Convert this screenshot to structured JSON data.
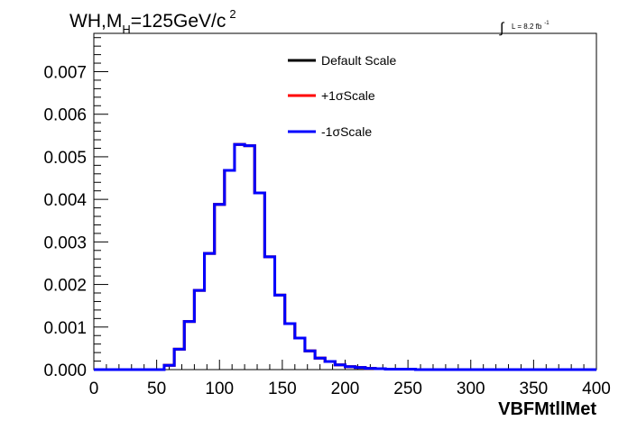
{
  "chart_data": {
    "type": "line",
    "title": {
      "main": "WH,M",
      "subscript": "H",
      "rest": "=125GeV/c",
      "superscript": "2"
    },
    "luminosity": {
      "integral": "∫",
      "text": "L = 8.2 fb",
      "superscript": "-1"
    },
    "xlabel": "VBFMtllMet",
    "ylabel": "",
    "xlim": [
      0,
      400
    ],
    "ylim": [
      0,
      0.0079
    ],
    "x_ticks": [
      "0",
      "50",
      "100",
      "150",
      "200",
      "250",
      "300",
      "350",
      "400"
    ],
    "x_tick_values": [
      0,
      50,
      100,
      150,
      200,
      250,
      300,
      350,
      400
    ],
    "y_ticks": [
      "0.000",
      "0.001",
      "0.002",
      "0.003",
      "0.004",
      "0.005",
      "0.006",
      "0.007"
    ],
    "y_tick_values": [
      0,
      0.001,
      0.002,
      0.003,
      0.004,
      0.005,
      0.006,
      0.007
    ],
    "bin_width": 8,
    "legend": {
      "position": "top-center",
      "entries": [
        {
          "label": "Default Scale",
          "color": "#000000"
        },
        {
          "label": "+1σScale",
          "color": "#ff0000"
        },
        {
          "label": "-1σScale",
          "color": "#0000ff"
        }
      ]
    },
    "series": [
      {
        "name": "Default Scale",
        "color": "#000000",
        "bin_edges": [
          0,
          8,
          16,
          24,
          32,
          40,
          48,
          56,
          64,
          72,
          80,
          88,
          96,
          104,
          112,
          120,
          128,
          136,
          144,
          152,
          160,
          168,
          176,
          184,
          192,
          200,
          208,
          216,
          224,
          232,
          240,
          248,
          256,
          264,
          272,
          280,
          288,
          296,
          304,
          312,
          320,
          328,
          336,
          344,
          352,
          360,
          368,
          376,
          384,
          392,
          400
        ],
        "values": [
          0,
          0,
          0,
          0,
          0,
          0,
          0,
          0.0001,
          0.00048,
          0.00113,
          0.00186,
          0.00273,
          0.00388,
          0.00468,
          0.00529,
          0.00526,
          0.00415,
          0.00265,
          0.00175,
          0.00108,
          0.00074,
          0.00044,
          0.00027,
          0.00019,
          0.00011,
          7e-05,
          5e-05,
          3e-05,
          2e-05,
          1e-05,
          1e-05,
          1e-05,
          0,
          0,
          0,
          0,
          0,
          0,
          0,
          0,
          0,
          0,
          0,
          0,
          0,
          0,
          0,
          0,
          0,
          0
        ]
      },
      {
        "name": "+1σScale",
        "color": "#ff0000",
        "bin_edges": [
          0,
          8,
          16,
          24,
          32,
          40,
          48,
          56,
          64,
          72,
          80,
          88,
          96,
          104,
          112,
          120,
          128,
          136,
          144,
          152,
          160,
          168,
          176,
          184,
          192,
          200,
          208,
          216,
          224,
          232,
          240,
          248,
          256,
          264,
          272,
          280,
          288,
          296,
          304,
          312,
          320,
          328,
          336,
          344,
          352,
          360,
          368,
          376,
          384,
          392,
          400
        ],
        "values": [
          0,
          0,
          0,
          0,
          0,
          0,
          0,
          0.0001,
          0.00048,
          0.00113,
          0.00186,
          0.00273,
          0.00388,
          0.00468,
          0.00529,
          0.00526,
          0.00415,
          0.00265,
          0.00175,
          0.00108,
          0.00074,
          0.00044,
          0.00027,
          0.00019,
          0.00011,
          7e-05,
          5e-05,
          3e-05,
          2e-05,
          1e-05,
          1e-05,
          1e-05,
          0,
          0,
          0,
          0,
          0,
          0,
          0,
          0,
          0,
          0,
          0,
          0,
          0,
          0,
          0,
          0,
          0,
          0
        ]
      },
      {
        "name": "-1σScale",
        "color": "#0000ff",
        "bin_edges": [
          0,
          8,
          16,
          24,
          32,
          40,
          48,
          56,
          64,
          72,
          80,
          88,
          96,
          104,
          112,
          120,
          128,
          136,
          144,
          152,
          160,
          168,
          176,
          184,
          192,
          200,
          208,
          216,
          224,
          232,
          240,
          248,
          256,
          264,
          272,
          280,
          288,
          296,
          304,
          312,
          320,
          328,
          336,
          344,
          352,
          360,
          368,
          376,
          384,
          392,
          400
        ],
        "values": [
          0,
          0,
          0,
          0,
          0,
          0,
          0,
          0.0001,
          0.00048,
          0.00113,
          0.00186,
          0.00273,
          0.00388,
          0.00468,
          0.00529,
          0.00526,
          0.00415,
          0.00265,
          0.00175,
          0.00108,
          0.00074,
          0.00044,
          0.00027,
          0.00019,
          0.00011,
          7e-05,
          5e-05,
          3e-05,
          2e-05,
          1e-05,
          1e-05,
          1e-05,
          0,
          0,
          0,
          0,
          0,
          0,
          0,
          0,
          0,
          0,
          0,
          0,
          0,
          0,
          0,
          0,
          0,
          0
        ]
      }
    ]
  }
}
